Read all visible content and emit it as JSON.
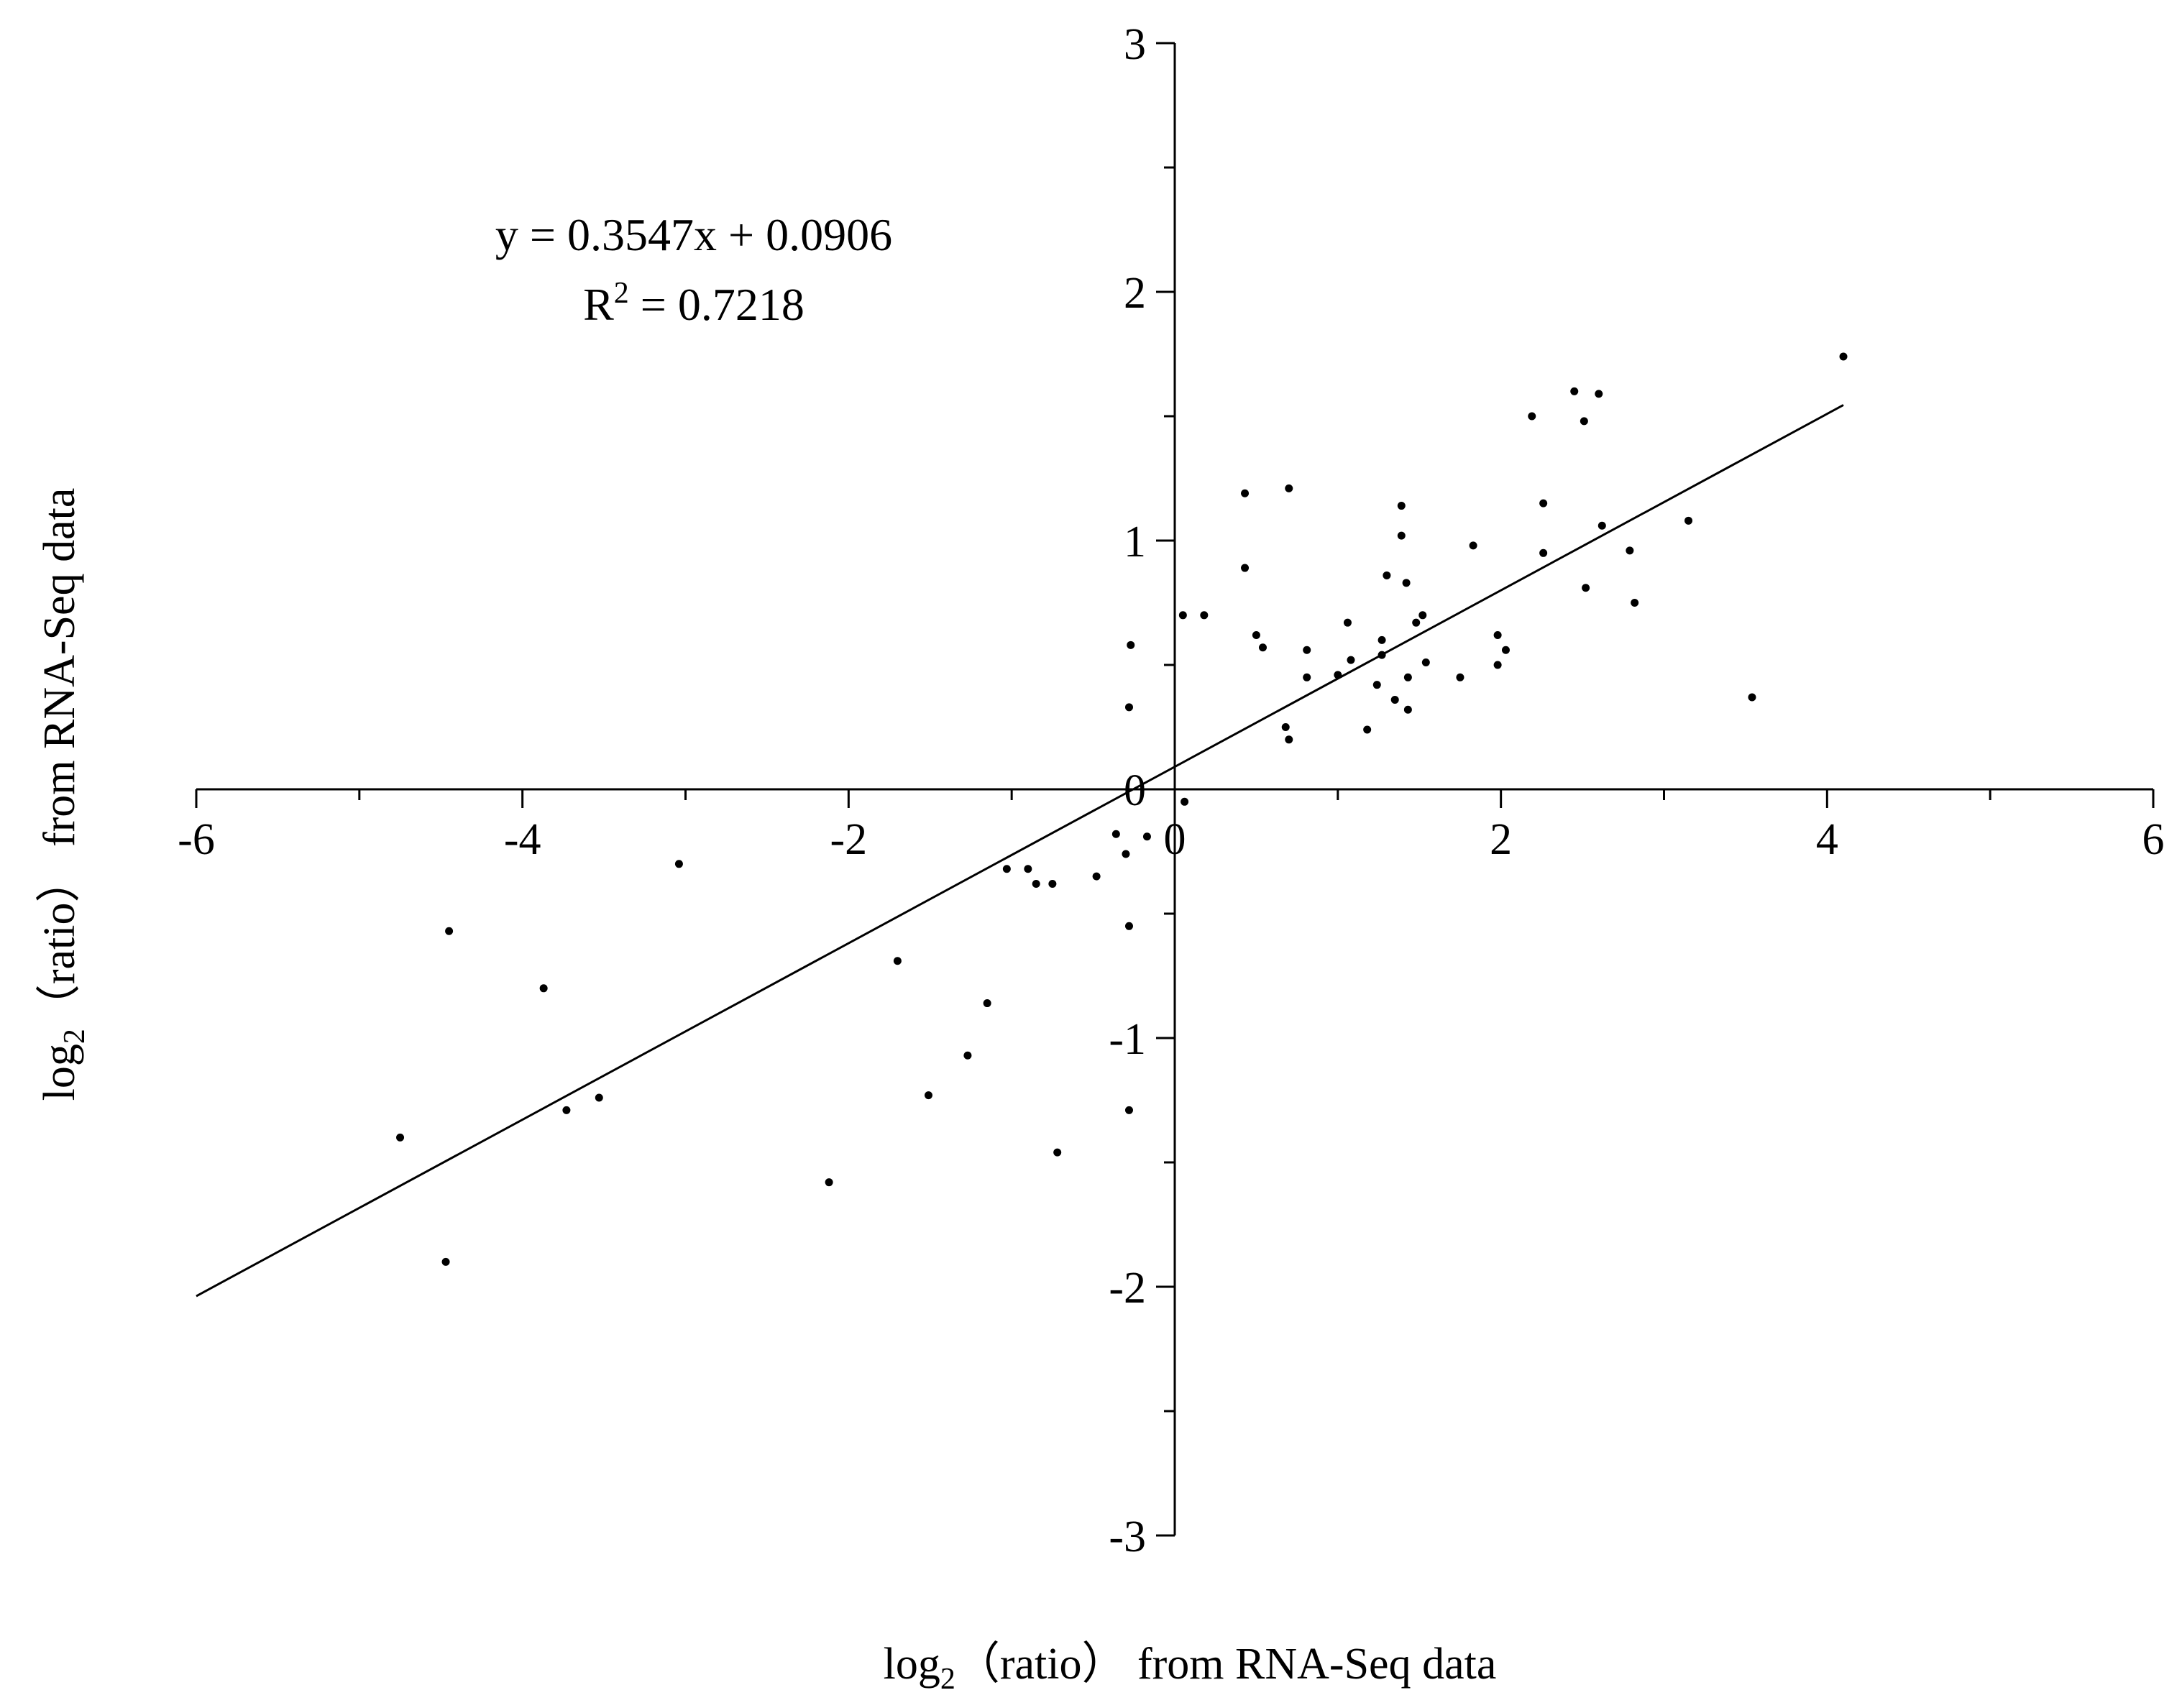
{
  "chart_data": {
    "type": "scatter",
    "title": "",
    "xlabel": {
      "prefix": "log",
      "sub": "2",
      "rest": "（ratio） from RNA-Seq data"
    },
    "ylabel": {
      "prefix": "log",
      "sub": "2",
      "rest": "（ratio） from RNA-Seq data"
    },
    "xlim": [
      -6,
      6
    ],
    "ylim": [
      -3,
      3
    ],
    "x_ticks": [
      "-6",
      "-4",
      "-2",
      "0",
      "2",
      "4",
      "6"
    ],
    "y_ticks": [
      "-3",
      "-2",
      "-1",
      "0",
      "1",
      "2",
      "3"
    ],
    "grid": false,
    "legend": "none",
    "axes_cross_at_origin": true,
    "annotation": {
      "equation": "y = 0.3547x + 0.0906",
      "r2_prefix": "R",
      "r2_sup": "2",
      "r2_rest": " = 0.7218"
    },
    "trendline": {
      "slope": 0.3547,
      "intercept": 0.0906,
      "x_range": [
        -6,
        4.1
      ]
    },
    "points": [
      [
        -4.75,
        -1.4
      ],
      [
        -4.45,
        -0.57
      ],
      [
        -4.47,
        -1.9
      ],
      [
        -3.87,
        -0.8
      ],
      [
        -3.73,
        -1.29
      ],
      [
        -3.53,
        -1.24
      ],
      [
        -3.04,
        -0.3
      ],
      [
        -2.12,
        -1.58
      ],
      [
        -1.7,
        -0.69
      ],
      [
        -1.51,
        -1.23
      ],
      [
        -1.27,
        -1.07
      ],
      [
        -1.15,
        -0.86
      ],
      [
        -1.03,
        -0.32
      ],
      [
        -0.9,
        -0.32
      ],
      [
        -0.85,
        -0.38
      ],
      [
        -0.75,
        -0.38
      ],
      [
        -0.72,
        -1.46
      ],
      [
        -0.48,
        -0.35
      ],
      [
        -0.36,
        -0.18
      ],
      [
        -0.3,
        -0.26
      ],
      [
        -0.28,
        -0.55
      ],
      [
        -0.28,
        -1.29
      ],
      [
        -0.17,
        -0.19
      ],
      [
        -0.27,
        0.58
      ],
      [
        -0.28,
        0.33
      ],
      [
        0.05,
        0.7
      ],
      [
        0.18,
        0.7
      ],
      [
        0.06,
        -0.05
      ],
      [
        0.43,
        1.19
      ],
      [
        0.43,
        0.89
      ],
      [
        0.5,
        0.62
      ],
      [
        0.54,
        0.57
      ],
      [
        0.68,
        0.25
      ],
      [
        0.7,
        0.2
      ],
      [
        0.7,
        1.21
      ],
      [
        0.81,
        0.56
      ],
      [
        0.81,
        0.45
      ],
      [
        1.0,
        0.46
      ],
      [
        1.06,
        0.67
      ],
      [
        1.08,
        0.52
      ],
      [
        1.18,
        0.24
      ],
      [
        1.24,
        0.42
      ],
      [
        1.27,
        0.6
      ],
      [
        1.3,
        0.86
      ],
      [
        1.27,
        0.54
      ],
      [
        1.35,
        0.36
      ],
      [
        1.39,
        1.02
      ],
      [
        1.39,
        1.14
      ],
      [
        1.42,
        0.83
      ],
      [
        1.43,
        0.45
      ],
      [
        1.43,
        0.32
      ],
      [
        1.48,
        0.67
      ],
      [
        1.52,
        0.7
      ],
      [
        1.54,
        0.51
      ],
      [
        1.75,
        0.45
      ],
      [
        1.83,
        0.98
      ],
      [
        1.98,
        0.62
      ],
      [
        1.98,
        0.5
      ],
      [
        2.03,
        0.56
      ],
      [
        2.19,
        1.5
      ],
      [
        2.26,
        1.15
      ],
      [
        2.26,
        0.95
      ],
      [
        2.45,
        1.6
      ],
      [
        2.51,
        1.48
      ],
      [
        2.52,
        0.81
      ],
      [
        2.6,
        1.59
      ],
      [
        2.62,
        1.06
      ],
      [
        2.79,
        0.96
      ],
      [
        2.82,
        0.75
      ],
      [
        3.15,
        1.08
      ],
      [
        3.54,
        0.37
      ],
      [
        4.1,
        1.74
      ]
    ]
  }
}
